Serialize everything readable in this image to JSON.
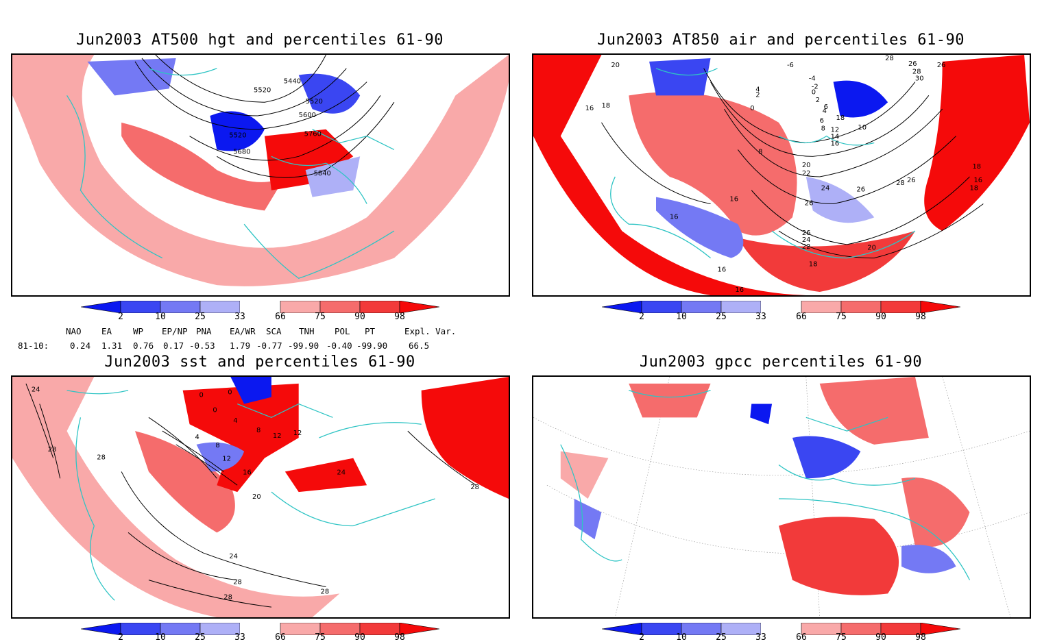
{
  "panels": [
    {
      "id": "hgt500",
      "title": "Jun2003 AT500 hgt and percentiles 61-90",
      "contour_labels": [
        "5440",
        "5520",
        "5520",
        "5600",
        "5520",
        "5760",
        "5680",
        "5840"
      ]
    },
    {
      "id": "air850",
      "title": "Jun2003 AT850 air and percentiles 61-90",
      "contour_labels": [
        "20",
        "18",
        "16",
        "16",
        "16",
        "16",
        "16",
        "18",
        "20",
        "22",
        "24",
        "26",
        "26",
        "24",
        "22",
        "20",
        "18",
        "28",
        "26",
        "26",
        "18",
        "16",
        "12",
        "14",
        "16",
        "18",
        "10",
        "8",
        "6",
        "4",
        "2",
        "0",
        "-6",
        "-4",
        "-2",
        "0",
        "2",
        "4",
        "6",
        "8",
        "26",
        "28",
        "30",
        "28",
        "26"
      ]
    },
    {
      "id": "sst",
      "title": "Jun2003 sst and percentiles 61-90",
      "contour_labels": [
        "24",
        "28",
        "28",
        "24",
        "28",
        "28",
        "28",
        "20",
        "16",
        "12",
        "8",
        "4",
        "0",
        "0",
        "0",
        "4",
        "8",
        "12",
        "12",
        "24",
        "28"
      ]
    },
    {
      "id": "gpcc",
      "title": "Jun2003 gpcc percentiles 61-90",
      "contour_labels": []
    }
  ],
  "colorbar": {
    "ticks": [
      "2",
      "10",
      "25",
      "33",
      "66",
      "75",
      "90",
      "98"
    ],
    "colors": [
      "#0b18f0",
      "#3a46f2",
      "#7479f4",
      "#aeb0f7",
      "#ffffff",
      "#f9a9a9",
      "#f56c6c",
      "#f23a3a",
      "#f50a0a"
    ]
  },
  "colors": {
    "coast": "#2ec4c4",
    "contour": "#000000",
    "frame": "#000000"
  },
  "indices": {
    "headers": [
      "NAO",
      "EA",
      "WP",
      "EP/NP",
      "PNA",
      "EA/WR",
      "SCA",
      "TNH",
      "POL",
      "PT",
      "Expl. Var."
    ],
    "row_label": "81-10:",
    "values": [
      "0.24",
      "1.31",
      "0.76",
      "0.17",
      "-0.53",
      "1.79",
      "-0.77",
      "-99.90",
      "-0.40",
      "-99.90",
      "66.5"
    ]
  }
}
